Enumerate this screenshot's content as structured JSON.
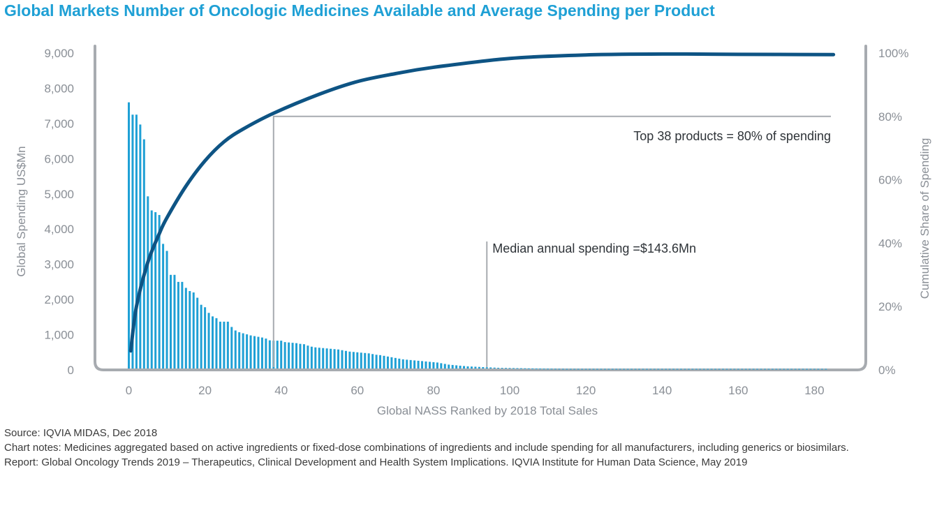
{
  "title": "Global Markets Number of Oncologic Medicines Available and Average Spending per Product",
  "notes": {
    "source": "Source: IQVIA MIDAS, Dec 2018",
    "chart_notes": "Chart notes: Medicines aggregated based on active ingredients or fixed-dose combinations of ingredients and include spending for all manufacturers, including generics or biosimilars.",
    "report": "Report: Global Oncology Trends 2019 – Therapeutics, Clinical Development and Health System Implications. IQVIA Institute for Human Data Science, May 2019"
  },
  "chart_data": {
    "type": "bar",
    "xlabel": "Global NASS Ranked by 2018 Total Sales",
    "ylabel": "Global Spending US$Mn",
    "y2label": "Cumulative Share of Spending",
    "xlim": [
      -10,
      185
    ],
    "ylim": [
      0,
      9000
    ],
    "y2lim": [
      0,
      100
    ],
    "x_ticks": [
      "0",
      "20",
      "40",
      "60",
      "80",
      "100",
      "120",
      "140",
      "160",
      "180"
    ],
    "y_ticks": [
      "0",
      "1,000",
      "2,000",
      "3,000",
      "4,000",
      "5,000",
      "6,000",
      "7,000",
      "8,000",
      "9,000"
    ],
    "y2_ticks": [
      "0%",
      "20%",
      "40%",
      "60%",
      "80%",
      "100%"
    ],
    "grid": false,
    "colors": {
      "bars": "#1fa0d5",
      "cumulative_line": "#0e5484",
      "axis": "#a7abb0",
      "title": "#1fa0d5"
    },
    "series": [
      {
        "type": "bar",
        "x_start": 1,
        "values": [
          7600,
          7250,
          7250,
          6970,
          6550,
          4930,
          4530,
          4480,
          4400,
          3580,
          3380,
          2700,
          2700,
          2500,
          2500,
          2330,
          2240,
          2200,
          2050,
          1850,
          1780,
          1620,
          1520,
          1470,
          1370,
          1370,
          1370,
          1220,
          1120,
          1070,
          1040,
          1010,
          980,
          960,
          940,
          920,
          890,
          840,
          830,
          830,
          830,
          790,
          780,
          770,
          760,
          740,
          730,
          690,
          660,
          640,
          630,
          620,
          610,
          600,
          590,
          580,
          560,
          540,
          520,
          510,
          500,
          490,
          480,
          470,
          450,
          430,
          420,
          400,
          380,
          360,
          340,
          320,
          300,
          290,
          280,
          270,
          260,
          250,
          240,
          230,
          220,
          210,
          190,
          170,
          150,
          140,
          130,
          120,
          110,
          100,
          95,
          90,
          85,
          80,
          75,
          70,
          65,
          60,
          58,
          56,
          54,
          52,
          50,
          48,
          46,
          44,
          42,
          40,
          38,
          36,
          35,
          34,
          33,
          32,
          31,
          30,
          30,
          30,
          30,
          30,
          30,
          30,
          30,
          30,
          30,
          30,
          30,
          30,
          30,
          30,
          30,
          30,
          30,
          30,
          30,
          30,
          30,
          30,
          30,
          30,
          30,
          30,
          30,
          30,
          30,
          30,
          30,
          30,
          30,
          30,
          30,
          30,
          30,
          30,
          30,
          30,
          30,
          30,
          30,
          30,
          30,
          30,
          30,
          30,
          30,
          30,
          30,
          30,
          30,
          30,
          30,
          30,
          30,
          30,
          30,
          30,
          30,
          30,
          30,
          30,
          30,
          30,
          30,
          30
        ]
      },
      {
        "type": "line",
        "axis": "y2",
        "x": [
          0.5,
          2,
          5,
          8,
          10,
          15,
          20,
          25,
          30,
          38,
          50,
          60,
          70,
          80,
          100,
          120,
          140,
          160,
          185
        ],
        "y": [
          6,
          20,
          34,
          43,
          48,
          58,
          66,
          72,
          76,
          81,
          87,
          91,
          93.5,
          95.5,
          98.3,
          99.4,
          99.7,
          99.6,
          99.5
        ]
      }
    ],
    "annotations": [
      {
        "text": "Top 38 products = 80% of spending",
        "x": 38,
        "y2": 80
      },
      {
        "text": "Median annual spending =$143.6Mn",
        "x": 94
      }
    ]
  }
}
